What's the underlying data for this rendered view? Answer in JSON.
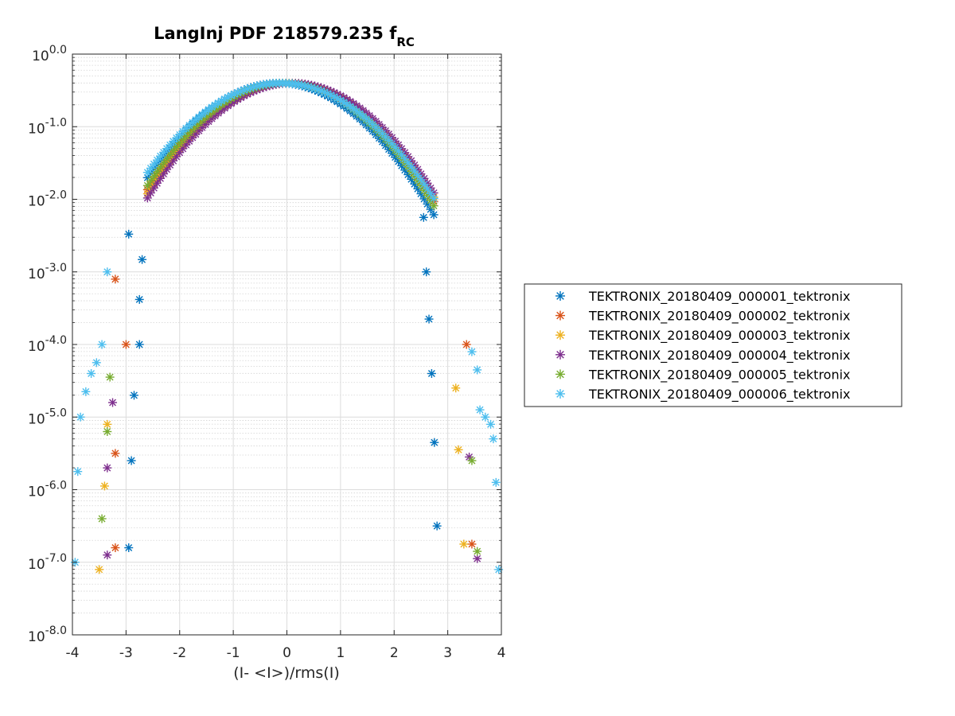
{
  "chart_data": {
    "type": "scatter",
    "title": "LangInj PDF 218579.235 f",
    "title_subscript": "RC",
    "xlabel": "(I- <I>)/rms(I)",
    "ylabel": "",
    "xlim": [
      -4,
      4
    ],
    "ylim_log10": [
      -8,
      0
    ],
    "yscale": "log",
    "x_ticks": [
      "-4",
      "-3",
      "-2",
      "-1",
      "0",
      "1",
      "2",
      "3",
      "4"
    ],
    "y_ticks": [
      {
        "base": "10",
        "exp": "0.0"
      },
      {
        "base": "10",
        "exp": "-1.0"
      },
      {
        "base": "10",
        "exp": "-2.0"
      },
      {
        "base": "10",
        "exp": "-3.0"
      },
      {
        "base": "10",
        "exp": "-4.0"
      },
      {
        "base": "10",
        "exp": "-5.0"
      },
      {
        "base": "10",
        "exp": "-6.0"
      },
      {
        "base": "10",
        "exp": "-7.0"
      },
      {
        "base": "10",
        "exp": "-8.0"
      }
    ],
    "grid": true,
    "minor_grid": true,
    "marker": "asterisk",
    "legend_position": "east-outside",
    "series": [
      {
        "name": "TEKTRONIX_20180409_000001_tektronix",
        "color": "#0072BD",
        "x_center": -0.15,
        "sigma": 1.0,
        "outliers": [
          [
            -2.95,
            -2.48
          ],
          [
            -2.7,
            -2.83
          ],
          [
            -2.75,
            -3.38
          ],
          [
            -2.75,
            -4.0
          ],
          [
            -2.85,
            -4.7
          ],
          [
            -2.9,
            -5.6
          ],
          [
            -2.95,
            -6.8
          ],
          [
            2.55,
            -2.25
          ],
          [
            2.6,
            -3.0
          ],
          [
            2.65,
            -3.65
          ],
          [
            2.7,
            -4.4
          ],
          [
            2.75,
            -5.35
          ],
          [
            2.8,
            -6.5
          ]
        ]
      },
      {
        "name": "TEKTRONIX_20180409_000002_tektronix",
        "color": "#D95319",
        "x_center": 0.0,
        "sigma": 1.0,
        "outliers": [
          [
            -3.2,
            -3.1
          ],
          [
            -3.0,
            -4.0
          ],
          [
            -3.2,
            -5.5
          ],
          [
            -3.2,
            -6.8
          ],
          [
            3.35,
            -4.0
          ],
          [
            3.45,
            -6.75
          ]
        ]
      },
      {
        "name": "TEKTRONIX_20180409_000003_tektronix",
        "color": "#EDB120",
        "x_center": 0.05,
        "sigma": 1.0,
        "outliers": [
          [
            -3.35,
            -5.1
          ],
          [
            -3.4,
            -5.95
          ],
          [
            -3.5,
            -7.1
          ],
          [
            3.15,
            -4.6
          ],
          [
            3.2,
            -5.45
          ],
          [
            3.3,
            -6.75
          ]
        ]
      },
      {
        "name": "TEKTRONIX_20180409_000004_tektronix",
        "color": "#7E2F8E",
        "x_center": 0.1,
        "sigma": 1.0,
        "outliers": [
          [
            -3.25,
            -4.8
          ],
          [
            -3.35,
            -5.7
          ],
          [
            -3.35,
            -6.9
          ],
          [
            3.4,
            -5.55
          ],
          [
            3.55,
            -6.95
          ]
        ]
      },
      {
        "name": "TEKTRONIX_20180409_000005_tektronix",
        "color": "#77AC30",
        "x_center": -0.05,
        "sigma": 1.0,
        "outliers": [
          [
            -3.3,
            -4.45
          ],
          [
            -3.35,
            -5.2
          ],
          [
            -3.45,
            -6.4
          ],
          [
            3.45,
            -5.6
          ],
          [
            3.55,
            -6.85
          ]
        ]
      },
      {
        "name": "TEKTRONIX_20180409_000006_tektronix",
        "color": "#4DBEEE",
        "x_center": -0.1,
        "sigma": 1.05,
        "outliers": [
          [
            -3.35,
            -3.0
          ],
          [
            -3.45,
            -4.0
          ],
          [
            -3.55,
            -4.25
          ],
          [
            -3.65,
            -4.4
          ],
          [
            -3.75,
            -4.65
          ],
          [
            -3.85,
            -5.0
          ],
          [
            -3.9,
            -5.75
          ],
          [
            -3.95,
            -7.0
          ],
          [
            3.45,
            -4.1
          ],
          [
            3.55,
            -4.35
          ],
          [
            3.6,
            -4.9
          ],
          [
            3.7,
            -5.0
          ],
          [
            3.8,
            -5.1
          ],
          [
            3.85,
            -5.3
          ],
          [
            3.9,
            -5.9
          ],
          [
            3.95,
            -7.1
          ]
        ]
      }
    ]
  }
}
